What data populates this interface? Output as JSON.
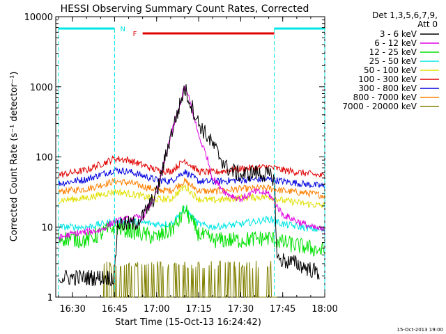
{
  "chart_data": {
    "type": "line",
    "title": "HESSI Observing Summary Count Rates, Corrected",
    "xlabel": "Start Time (15-Oct-13 16:24:42)",
    "ylabel": "Corrected Count Rate (s⁻¹ detector⁻¹)",
    "y_scale": "log",
    "ylim": [
      1,
      10000
    ],
    "xlim_minutes": [
      16.4,
      18.0
    ],
    "x_ticks": [
      "16:30",
      "16:45",
      "17:00",
      "17:15",
      "17:30",
      "17:45",
      "18:00"
    ],
    "y_ticks": [
      "1",
      "10",
      "100",
      "1000",
      "10000"
    ],
    "legend_header": [
      "Det 1,3,5,6,7,9,",
      "Att 0"
    ],
    "legend_position": "right",
    "footer_stamp": "15-Oct-2013 19:00",
    "flags": {
      "night_label": "N",
      "flare_label": "F",
      "night_color": "#00e5e5",
      "flare_color": "#e00000",
      "night_intervals": [
        [
          "16:25",
          "16:45"
        ],
        [
          "17:42",
          "18:00"
        ]
      ],
      "flare_interval": [
        "16:55",
        "17:42"
      ]
    },
    "series": [
      {
        "name": "3 - 6 keV",
        "color": "#000000",
        "x": [
          "16:25",
          "16:30",
          "16:40",
          "16:45",
          "16:46",
          "16:52",
          "16:55",
          "17:00",
          "17:05",
          "17:08",
          "17:10",
          "17:12",
          "17:15",
          "17:20",
          "17:25",
          "17:30",
          "17:35",
          "17:40",
          "17:42",
          "17:43",
          "17:50",
          "17:58"
        ],
        "y": [
          1.9,
          1.9,
          1.9,
          1.9,
          11,
          11,
          14,
          30,
          200,
          500,
          950,
          600,
          300,
          150,
          70,
          55,
          60,
          55,
          50,
          3.5,
          3.0,
          2.2
        ]
      },
      {
        "name": "6 - 12 keV",
        "color": "#e000e0",
        "x": [
          "16:25",
          "16:30",
          "16:40",
          "16:45",
          "16:55",
          "17:00",
          "17:05",
          "17:08",
          "17:10",
          "17:12",
          "17:15",
          "17:18",
          "17:20",
          "17:25",
          "17:30",
          "17:35",
          "17:40",
          "17:45",
          "17:55",
          "18:00"
        ],
        "y": [
          7,
          8,
          9,
          12,
          14,
          30,
          200,
          500,
          1000,
          600,
          200,
          100,
          50,
          30,
          25,
          32,
          30,
          15,
          10,
          9
        ]
      },
      {
        "name": "12 - 25 keV",
        "color": "#00e000",
        "x": [
          "16:25",
          "16:35",
          "16:45",
          "16:50",
          "17:00",
          "17:05",
          "17:08",
          "17:10",
          "17:12",
          "17:15",
          "17:20",
          "17:30",
          "17:40",
          "17:45",
          "17:55",
          "18:00"
        ],
        "y": [
          7,
          6.5,
          10,
          9,
          7,
          9,
          12,
          18,
          13,
          8,
          6.5,
          6.5,
          7,
          6,
          5,
          4.5
        ]
      },
      {
        "name": "25 - 50 keV",
        "color": "#00e5e5",
        "x": [
          "16:25",
          "16:35",
          "16:45",
          "16:50",
          "17:00",
          "17:05",
          "17:10",
          "17:15",
          "17:20",
          "17:30",
          "17:40",
          "17:45",
          "17:55",
          "18:00"
        ],
        "y": [
          10,
          10,
          12,
          12,
          11,
          11,
          18,
          11,
          10,
          11,
          13,
          11,
          9.5,
          9
        ]
      },
      {
        "name": "50 - 100 keV",
        "color": "#e0e000",
        "x": [
          "16:25",
          "16:35",
          "16:45",
          "16:50",
          "17:00",
          "17:05",
          "17:10",
          "17:15",
          "17:20",
          "17:30",
          "17:40",
          "17:45",
          "17:55",
          "18:00"
        ],
        "y": [
          24,
          26,
          32,
          30,
          25,
          25,
          38,
          25,
          24,
          26,
          27,
          24,
          21,
          20
        ]
      },
      {
        "name": "100 - 300 keV",
        "color": "#e00000",
        "x": [
          "16:25",
          "16:35",
          "16:45",
          "16:50",
          "17:00",
          "17:05",
          "17:10",
          "17:15",
          "17:20",
          "17:30",
          "17:40",
          "17:45",
          "17:55",
          "18:00"
        ],
        "y": [
          55,
          65,
          95,
          90,
          65,
          62,
          90,
          62,
          60,
          68,
          72,
          65,
          57,
          53
        ]
      },
      {
        "name": "300 - 800 keV",
        "color": "#0000e0",
        "x": [
          "16:25",
          "16:35",
          "16:45",
          "16:50",
          "17:00",
          "17:05",
          "17:10",
          "17:15",
          "17:20",
          "17:30",
          "17:40",
          "17:45",
          "17:55",
          "18:00"
        ],
        "y": [
          42,
          48,
          65,
          62,
          47,
          45,
          62,
          45,
          44,
          47,
          48,
          45,
          40,
          38
        ]
      },
      {
        "name": "800 - 7000 keV",
        "color": "#ff8000",
        "x": [
          "16:25",
          "16:35",
          "16:45",
          "16:50",
          "17:00",
          "17:05",
          "17:10",
          "17:15",
          "17:20",
          "17:30",
          "17:40",
          "17:45",
          "17:55",
          "18:00"
        ],
        "y": [
          32,
          35,
          45,
          43,
          34,
          33,
          45,
          33,
          32,
          35,
          36,
          33,
          30,
          28
        ]
      },
      {
        "name": "7000 - 20000 keV",
        "color": "#808000",
        "x": [
          "16:41",
          "16:50",
          "17:00",
          "17:10",
          "17:20",
          "17:30",
          "17:40",
          "17:43"
        ],
        "y": [
          2.5,
          2.5,
          2.5,
          2.5,
          2.5,
          2.5,
          2.5,
          2.5
        ]
      }
    ]
  }
}
